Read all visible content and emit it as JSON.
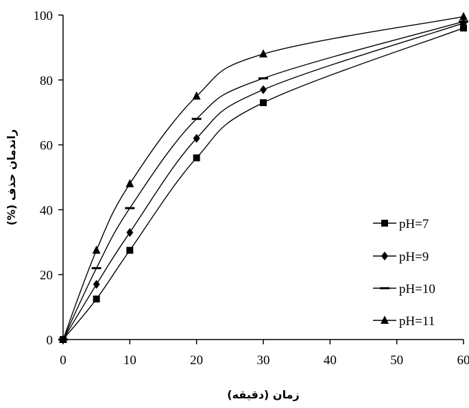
{
  "chart_data": {
    "type": "line",
    "xlabel": "زمان (دقيقه)",
    "ylabel": "راندمان حذف (%)",
    "xlim": [
      0,
      60
    ],
    "ylim": [
      0,
      100
    ],
    "xticks": [
      "0",
      "10",
      "20",
      "30",
      "40",
      "50",
      "60"
    ],
    "yticks": [
      "0",
      "20",
      "40",
      "60",
      "80",
      "100"
    ],
    "grid": false,
    "legend_position": "right",
    "x": [
      0,
      5,
      10,
      20,
      30,
      60
    ],
    "series": [
      {
        "name": "pH=7",
        "marker": "square",
        "values": [
          0,
          12.5,
          27.5,
          56,
          73,
          96
        ]
      },
      {
        "name": "pH=9",
        "marker": "diamond",
        "values": [
          0,
          17,
          33,
          62,
          77,
          97.5
        ]
      },
      {
        "name": "pH=10",
        "marker": "dash",
        "values": [
          0,
          22,
          40.5,
          68,
          80.5,
          98
        ]
      },
      {
        "name": "pH=11",
        "marker": "triangle",
        "values": [
          0,
          27.5,
          48,
          75,
          88,
          99.5
        ]
      }
    ]
  }
}
